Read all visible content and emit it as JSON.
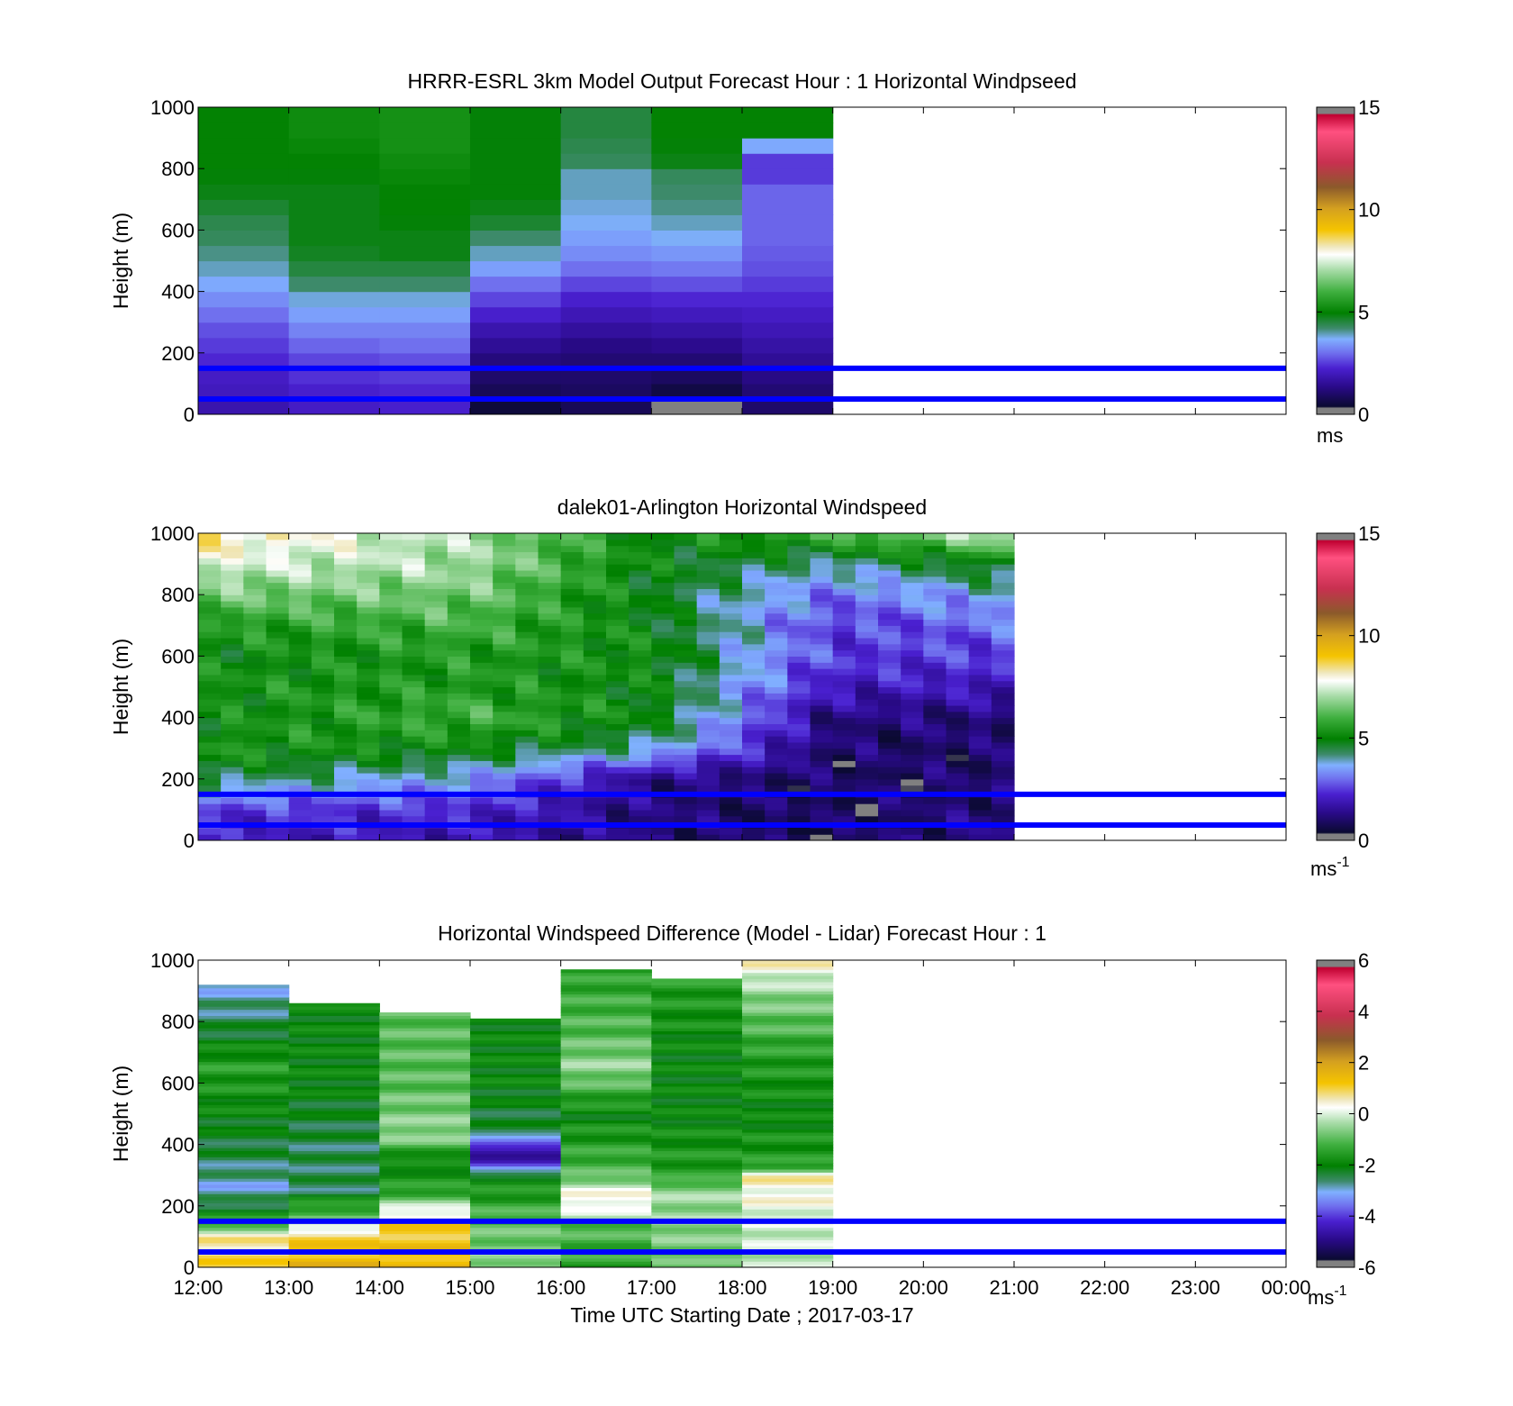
{
  "figure": {
    "xlabel": "Time UTC  Starting Date ; 2017-03-17",
    "xticks": [
      "12:00",
      "13:00",
      "14:00",
      "15:00",
      "16:00",
      "17:00",
      "18:00",
      "19:00",
      "20:00",
      "21:00",
      "22:00",
      "23:00",
      "00:00"
    ],
    "guide_lines_m": [
      150,
      50
    ],
    "guide_line_color": "#0000ff"
  },
  "chart_data": [
    {
      "type": "heatmap",
      "title": "HRRR-ESRL 3km Model Output   Forecast Hour : 1 Horizontal Windpseed",
      "ylabel": "Height (m)",
      "ylim": [
        0,
        1000
      ],
      "yticks": [
        "0",
        "200",
        "400",
        "600",
        "800",
        "1000"
      ],
      "colorbar": {
        "ticks": [
          "0",
          "5",
          "10",
          "15"
        ],
        "unit": "ms",
        "unit_sup": "",
        "range": [
          0,
          15
        ]
      },
      "data_extent_hours": 7,
      "heights_m": [
        0,
        50,
        100,
        150,
        200,
        250,
        300,
        350,
        400,
        450,
        500,
        550,
        600,
        650,
        700,
        750,
        800,
        850,
        900,
        950
      ],
      "columns": [
        {
          "time": "12:00",
          "values": [
            1.8,
            2.0,
            2.1,
            2.3,
            2.5,
            2.7,
            3.0,
            3.3,
            3.6,
            3.9,
            4.1,
            4.3,
            4.4,
            4.6,
            4.8,
            4.9,
            5.0,
            5.0,
            5.0,
            5.0
          ]
        },
        {
          "time": "13:00",
          "values": [
            2.1,
            2.2,
            2.4,
            2.6,
            2.9,
            3.2,
            3.5,
            3.8,
            4.2,
            4.5,
            4.7,
            4.8,
            4.8,
            4.8,
            4.8,
            4.9,
            5.0,
            5.1,
            5.2,
            5.2
          ]
        },
        {
          "time": "14:00",
          "values": [
            2.2,
            2.3,
            2.5,
            2.7,
            3.0,
            3.2,
            3.5,
            3.8,
            4.2,
            4.5,
            4.8,
            4.8,
            4.9,
            5.0,
            5.0,
            5.1,
            5.2,
            5.3,
            5.3,
            5.3
          ]
        },
        {
          "time": "15:00",
          "values": [
            0.5,
            0.8,
            1.0,
            1.2,
            1.5,
            1.8,
            2.2,
            2.6,
            3.0,
            3.5,
            3.9,
            4.2,
            4.6,
            4.8,
            4.9,
            4.9,
            4.9,
            4.9,
            4.9,
            4.9
          ]
        },
        {
          "time": "16:00",
          "values": [
            0.8,
            0.9,
            1.0,
            1.1,
            1.3,
            1.6,
            1.9,
            2.2,
            2.6,
            3.0,
            3.3,
            3.5,
            3.7,
            3.8,
            3.9,
            3.9,
            4.3,
            4.4,
            4.5,
            4.5
          ]
        },
        {
          "time": "17:00",
          "values": [
            0.3,
            0.6,
            0.9,
            1.1,
            1.4,
            1.7,
            2.0,
            2.3,
            2.7,
            3.1,
            3.4,
            3.7,
            3.9,
            4.1,
            4.2,
            4.3,
            4.8,
            4.9,
            5.0,
            5.0
          ]
        },
        {
          "time": "18:00",
          "values": [
            1.0,
            1.1,
            1.3,
            1.5,
            1.7,
            1.9,
            2.1,
            2.3,
            2.5,
            2.7,
            2.8,
            2.9,
            2.9,
            2.9,
            2.9,
            2.5,
            2.5,
            3.6,
            5.0,
            5.0
          ]
        }
      ]
    },
    {
      "type": "heatmap",
      "title": "dalek01-Arlington  Horizontal Windspeed",
      "ylabel": "Height (m)",
      "ylim": [
        0,
        1000
      ],
      "yticks": [
        "0",
        "200",
        "400",
        "600",
        "800",
        "1000"
      ],
      "colorbar": {
        "ticks": [
          "0",
          "5",
          "10",
          "15"
        ],
        "unit": "ms",
        "unit_sup": "-1",
        "range": [
          0,
          15
        ]
      },
      "data_extent_hours": 9,
      "time_step_minutes": 15,
      "profile_heights_m": [
        0,
        100,
        200,
        300,
        400,
        500,
        600,
        700,
        800,
        900,
        1000
      ],
      "profiles": [
        {
          "time": "12:00",
          "values": [
            2.0,
            2.5,
            4.5,
            5.5,
            5.0,
            5.3,
            5.0,
            5.5,
            6.5,
            7.5,
            8.5
          ]
        },
        {
          "time": "15:00",
          "values": [
            1.8,
            2.3,
            3.5,
            5.0,
            6.0,
            5.5,
            5.5,
            6.0,
            6.5,
            7.0,
            7.0
          ]
        },
        {
          "time": "17:00",
          "values": [
            1.2,
            1.2,
            1.3,
            4.0,
            5.0,
            5.0,
            5.2,
            5.0,
            4.8,
            5.0,
            5.0
          ]
        },
        {
          "time": "19:00",
          "values": [
            0.8,
            0.8,
            0.9,
            1.0,
            1.2,
            2.0,
            2.5,
            2.5,
            3.0,
            4.0,
            6.0
          ]
        },
        {
          "time": "21:00",
          "values": [
            1.5,
            1.2,
            1.0,
            1.0,
            1.2,
            2.0,
            2.5,
            3.0,
            3.8,
            5.0,
            7.5
          ]
        }
      ]
    },
    {
      "type": "heatmap",
      "title": "Horizontal Windspeed Difference (Model - Lidar) Forecast Hour : 1",
      "ylabel": "Height (m)",
      "ylim": [
        0,
        1000
      ],
      "yticks": [
        "0",
        "200",
        "400",
        "600",
        "800",
        "1000"
      ],
      "colorbar": {
        "ticks": [
          "-6",
          "-4",
          "-2",
          "0",
          "2",
          "4",
          "6"
        ],
        "unit": "ms",
        "unit_sup": "-1",
        "range": [
          -6,
          6
        ]
      },
      "columns": [
        {
          "time": "12:00",
          "top_m": 920,
          "profile": [
            [
              0,
              1.0
            ],
            [
              100,
              0.5
            ],
            [
              150,
              -1.5
            ],
            [
              250,
              -3.0
            ],
            [
              350,
              -2.5
            ],
            [
              500,
              -2.0
            ],
            [
              650,
              -1.5
            ],
            [
              800,
              -2.5
            ],
            [
              920,
              -3.0
            ]
          ]
        },
        {
          "time": "13:00",
          "top_m": 860,
          "profile": [
            [
              0,
              1.5
            ],
            [
              100,
              1.0
            ],
            [
              150,
              -0.5
            ],
            [
              250,
              -2.5
            ],
            [
              400,
              -2.5
            ],
            [
              600,
              -2.0
            ],
            [
              860,
              -2.0
            ]
          ]
        },
        {
          "time": "14:00",
          "top_m": 830,
          "profile": [
            [
              0,
              1.5
            ],
            [
              150,
              1.0
            ],
            [
              170,
              0.5
            ],
            [
              250,
              -1.5
            ],
            [
              350,
              -2.0
            ],
            [
              430,
              -0.5
            ],
            [
              600,
              -1.0
            ],
            [
              830,
              -1.0
            ]
          ]
        },
        {
          "time": "15:00",
          "top_m": 810,
          "profile": [
            [
              0,
              -0.5
            ],
            [
              150,
              -1.0
            ],
            [
              300,
              -2.0
            ],
            [
              340,
              -4.5
            ],
            [
              400,
              -4.5
            ],
            [
              430,
              -2.5
            ],
            [
              600,
              -2.0
            ],
            [
              810,
              -2.0
            ]
          ]
        },
        {
          "time": "16:00",
          "top_m": 970,
          "profile": [
            [
              0,
              -1.5
            ],
            [
              150,
              -1.0
            ],
            [
              200,
              0.5
            ],
            [
              260,
              0.0
            ],
            [
              300,
              -1.0
            ],
            [
              500,
              -2.0
            ],
            [
              650,
              -0.5
            ],
            [
              750,
              -1.0
            ],
            [
              970,
              -1.5
            ]
          ]
        },
        {
          "time": "17:00",
          "top_m": 940,
          "profile": [
            [
              0,
              -1.0
            ],
            [
              150,
              -0.5
            ],
            [
              250,
              -0.5
            ],
            [
              300,
              -1.5
            ],
            [
              500,
              -2.0
            ],
            [
              700,
              -2.0
            ],
            [
              940,
              -1.5
            ]
          ]
        },
        {
          "time": "18:00",
          "top_m": 1000,
          "profile": [
            [
              0,
              -0.3
            ],
            [
              150,
              0.0
            ],
            [
              300,
              0.5
            ],
            [
              330,
              -1.5
            ],
            [
              500,
              -2.0
            ],
            [
              700,
              -1.5
            ],
            [
              900,
              -0.5
            ],
            [
              1000,
              0.5
            ]
          ]
        }
      ]
    }
  ]
}
